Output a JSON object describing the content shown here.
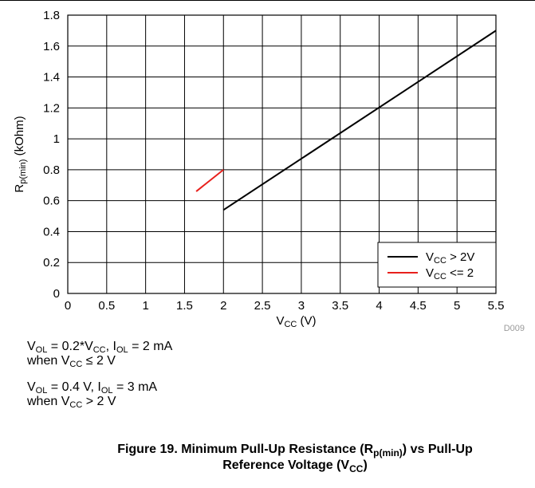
{
  "chart_data": {
    "type": "line",
    "code": "D009",
    "xlabel": {
      "main": "V",
      "sub": "CC",
      "tail": " (V)"
    },
    "ylabel": {
      "main": "R",
      "sub": "p(min)",
      "tail": " (kOhm)"
    },
    "xlim": [
      0,
      5.5
    ],
    "ylim": [
      0,
      1.8
    ],
    "xticks": [
      "0",
      "0.5",
      "1",
      "1.5",
      "2",
      "2.5",
      "3",
      "3.5",
      "4",
      "4.5",
      "5",
      "5.5"
    ],
    "yticks": [
      "0",
      "0.2",
      "0.4",
      "0.6",
      "0.8",
      "1",
      "1.2",
      "1.4",
      "1.6",
      "1.8"
    ],
    "grid": true,
    "legend_position": "bottom-right",
    "series": [
      {
        "name": {
          "main": "V",
          "sub": "CC",
          "tail": " > 2V"
        },
        "color": "#000000",
        "x": [
          2,
          5.5
        ],
        "y": [
          0.54,
          1.7
        ]
      },
      {
        "name": {
          "main": "V",
          "sub": "CC",
          "tail": " <= 2"
        },
        "color": "#e8201c",
        "x": [
          1.65,
          2
        ],
        "y": [
          0.66,
          0.8
        ]
      }
    ]
  },
  "notes": [
    [
      {
        "t": "V"
      },
      {
        "t": "OL",
        "sub": true
      },
      {
        "t": " = 0.2*V"
      },
      {
        "t": "CC",
        "sub": true
      },
      {
        "t": ", I"
      },
      {
        "t": "OL",
        "sub": true
      },
      {
        "t": " = 2 mA"
      }
    ],
    [
      {
        "t": "when V"
      },
      {
        "t": "CC",
        "sub": true
      },
      {
        "t": " ≤ 2 V"
      }
    ],
    [
      {
        "t": "V"
      },
      {
        "t": "OL",
        "sub": true
      },
      {
        "t": " = 0.4 V, I"
      },
      {
        "t": "OL",
        "sub": true
      },
      {
        "t": " = 3 mA"
      }
    ],
    [
      {
        "t": "when V"
      },
      {
        "t": "CC",
        "sub": true
      },
      {
        "t": " > 2 V"
      }
    ]
  ],
  "caption": {
    "line1": [
      {
        "t": "Figure 19. Minimum Pull-Up Resistance (R"
      },
      {
        "t": "p(min)",
        "sub": true
      },
      {
        "t": ") vs Pull-Up"
      }
    ],
    "line2": [
      {
        "t": "Reference Voltage (V"
      },
      {
        "t": "CC",
        "sub": true
      },
      {
        "t": ")"
      }
    ]
  }
}
